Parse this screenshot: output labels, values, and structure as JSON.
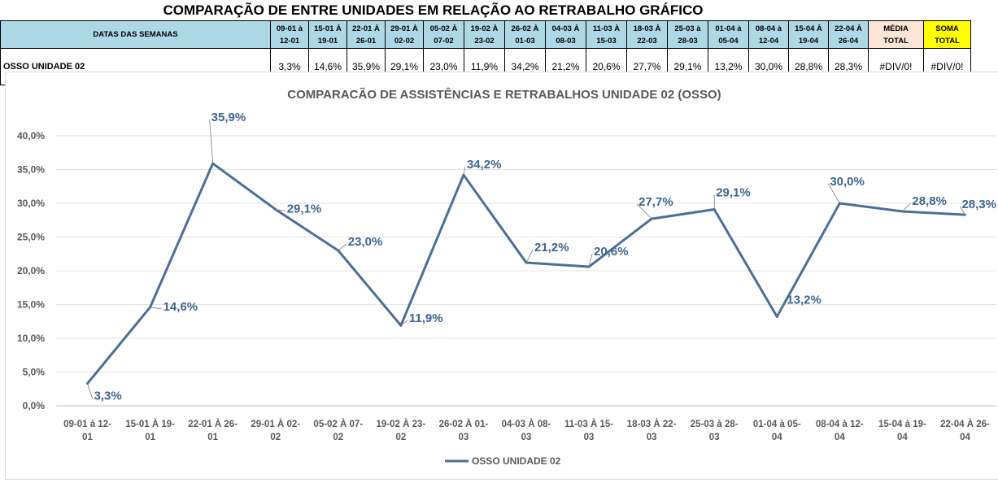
{
  "sheet_title": "COMPARAÇÃO DE ENTRE UNIDADES EM RELAÇÃO AO RETRABALHO GRÁFICO",
  "table": {
    "header_label": "DATAS DAS SEMANAS",
    "week_headers": [
      [
        "09-01 à",
        "12-01"
      ],
      [
        "15-01 À",
        "19-01"
      ],
      [
        "22-01 À",
        "26-01"
      ],
      [
        "29-01 À",
        "02-02"
      ],
      [
        "05-02 À",
        "07-02"
      ],
      [
        "19-02 À",
        "23-02"
      ],
      [
        "26-02 À",
        "01-03"
      ],
      [
        "04-03 À",
        "08-03"
      ],
      [
        "11-03 À",
        "15-03"
      ],
      [
        "18-03 À",
        "22-03"
      ],
      [
        "25-03 à",
        "28-03"
      ],
      [
        "01-04 à",
        "05-04"
      ],
      [
        "08-04 à",
        "12-04"
      ],
      [
        "15-04 À",
        "19-04"
      ],
      [
        "22-04 À",
        "26-04"
      ]
    ],
    "media_header": [
      "MÉDIA",
      "TOTAL"
    ],
    "soma_header": [
      "SOMA",
      "TOTAL"
    ],
    "row_label": "OSSO UNIDADE 02",
    "row_values": [
      "3,3%",
      "14,6%",
      "35,9%",
      "29,1%",
      "23,0%",
      "11,9%",
      "34,2%",
      "21,2%",
      "20,6%",
      "27,7%",
      "29,1%",
      "13,2%",
      "30,0%",
      "28,8%",
      "28,3%"
    ],
    "media_value": "#DIV/0!",
    "soma_value": "#DIV/0!"
  },
  "chart_data": {
    "type": "line",
    "title": "COMPARACÃO DE ASSISTÊNCIAS E RETRABALHOS UNIDADE 02  (OSSO)",
    "categories": [
      [
        "09-01 á 12-",
        "01"
      ],
      [
        "15-01 À 19-",
        "01"
      ],
      [
        "22-01 À 26-",
        "01"
      ],
      [
        "29-01 À 02-",
        "02"
      ],
      [
        "05-02 À 07-",
        "02"
      ],
      [
        "19-02 À 23-",
        "02"
      ],
      [
        "26-02 À 01-",
        "03"
      ],
      [
        "04-03 À 08-",
        "03"
      ],
      [
        "11-03 À 15-",
        "03"
      ],
      [
        "18-03 À 22-",
        "03"
      ],
      [
        "25-03 à 28-",
        "03"
      ],
      [
        "01-04 à 05-",
        "04"
      ],
      [
        "08-04 à 12-",
        "04"
      ],
      [
        "15-04 à 19-",
        "04"
      ],
      [
        "22-04 À 26-",
        "04"
      ]
    ],
    "series": [
      {
        "name": "OSSO UNIDADE 02",
        "values": [
          3.3,
          14.6,
          35.9,
          29.1,
          23.0,
          11.9,
          34.2,
          21.2,
          20.6,
          27.7,
          29.1,
          13.2,
          30.0,
          28.8,
          28.3
        ],
        "labels": [
          "3,3%",
          "14,6%",
          "35,9%",
          "29,1%",
          "23,0%",
          "11,9%",
          "34,2%",
          "21,2%",
          "20,6%",
          "27,7%",
          "29,1%",
          "13,2%",
          "30,0%",
          "28,8%",
          "28,3%"
        ],
        "color": "#4a6f99"
      }
    ],
    "ylim": [
      0,
      40
    ],
    "y_ticks": [
      "0,0%",
      "5,0%",
      "10,0%",
      "15,0%",
      "20,0%",
      "25,0%",
      "30,0%",
      "35,0%",
      "40,0%"
    ],
    "grid": true,
    "legend": "bottom"
  }
}
